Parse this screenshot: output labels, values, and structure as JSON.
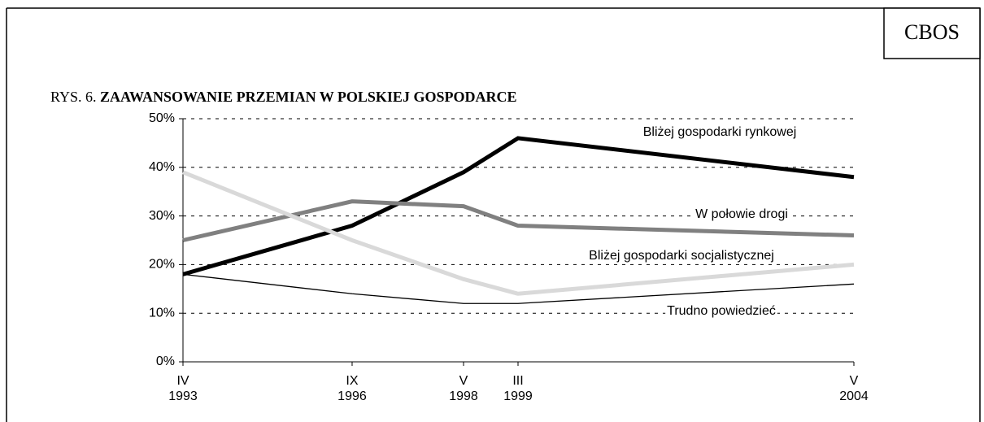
{
  "brand": "CBOS",
  "chart_data": {
    "type": "line",
    "title_prefix": "RYS. 6.",
    "title": "ZAAWANSOWANIE PRZEMIAN W POLSKIEJ GOSPODARCE",
    "categories": [
      [
        "IV",
        "1993"
      ],
      [
        "IX",
        "1996"
      ],
      [
        "V",
        "1998"
      ],
      [
        "III",
        "1999"
      ],
      [
        "V",
        "2004"
      ]
    ],
    "series": [
      {
        "name": "Bliżej gospodarki rynkowej",
        "color": "#000000",
        "values": [
          18,
          28,
          39,
          46,
          38
        ]
      },
      {
        "name": "W połowie drogi",
        "color": "#808080",
        "values": [
          25,
          33,
          32,
          28,
          26
        ]
      },
      {
        "name": "Bliżej gospodarki socjalistycznej",
        "color": "#d9d9d9",
        "values": [
          39,
          25,
          17,
          14,
          20
        ]
      },
      {
        "name": "Trudno powiedzieć",
        "color": "#000000",
        "values": [
          18,
          14,
          12,
          12,
          16
        ]
      }
    ],
    "ylim": [
      0,
      50
    ],
    "yticks": [
      {
        "value": 0,
        "label": "0%"
      },
      {
        "value": 10,
        "label": "10%"
      },
      {
        "value": 20,
        "label": "20%"
      },
      {
        "value": 30,
        "label": "30%"
      },
      {
        "value": 40,
        "label": "40%"
      },
      {
        "value": 50,
        "label": "50%"
      }
    ],
    "grid": true
  }
}
